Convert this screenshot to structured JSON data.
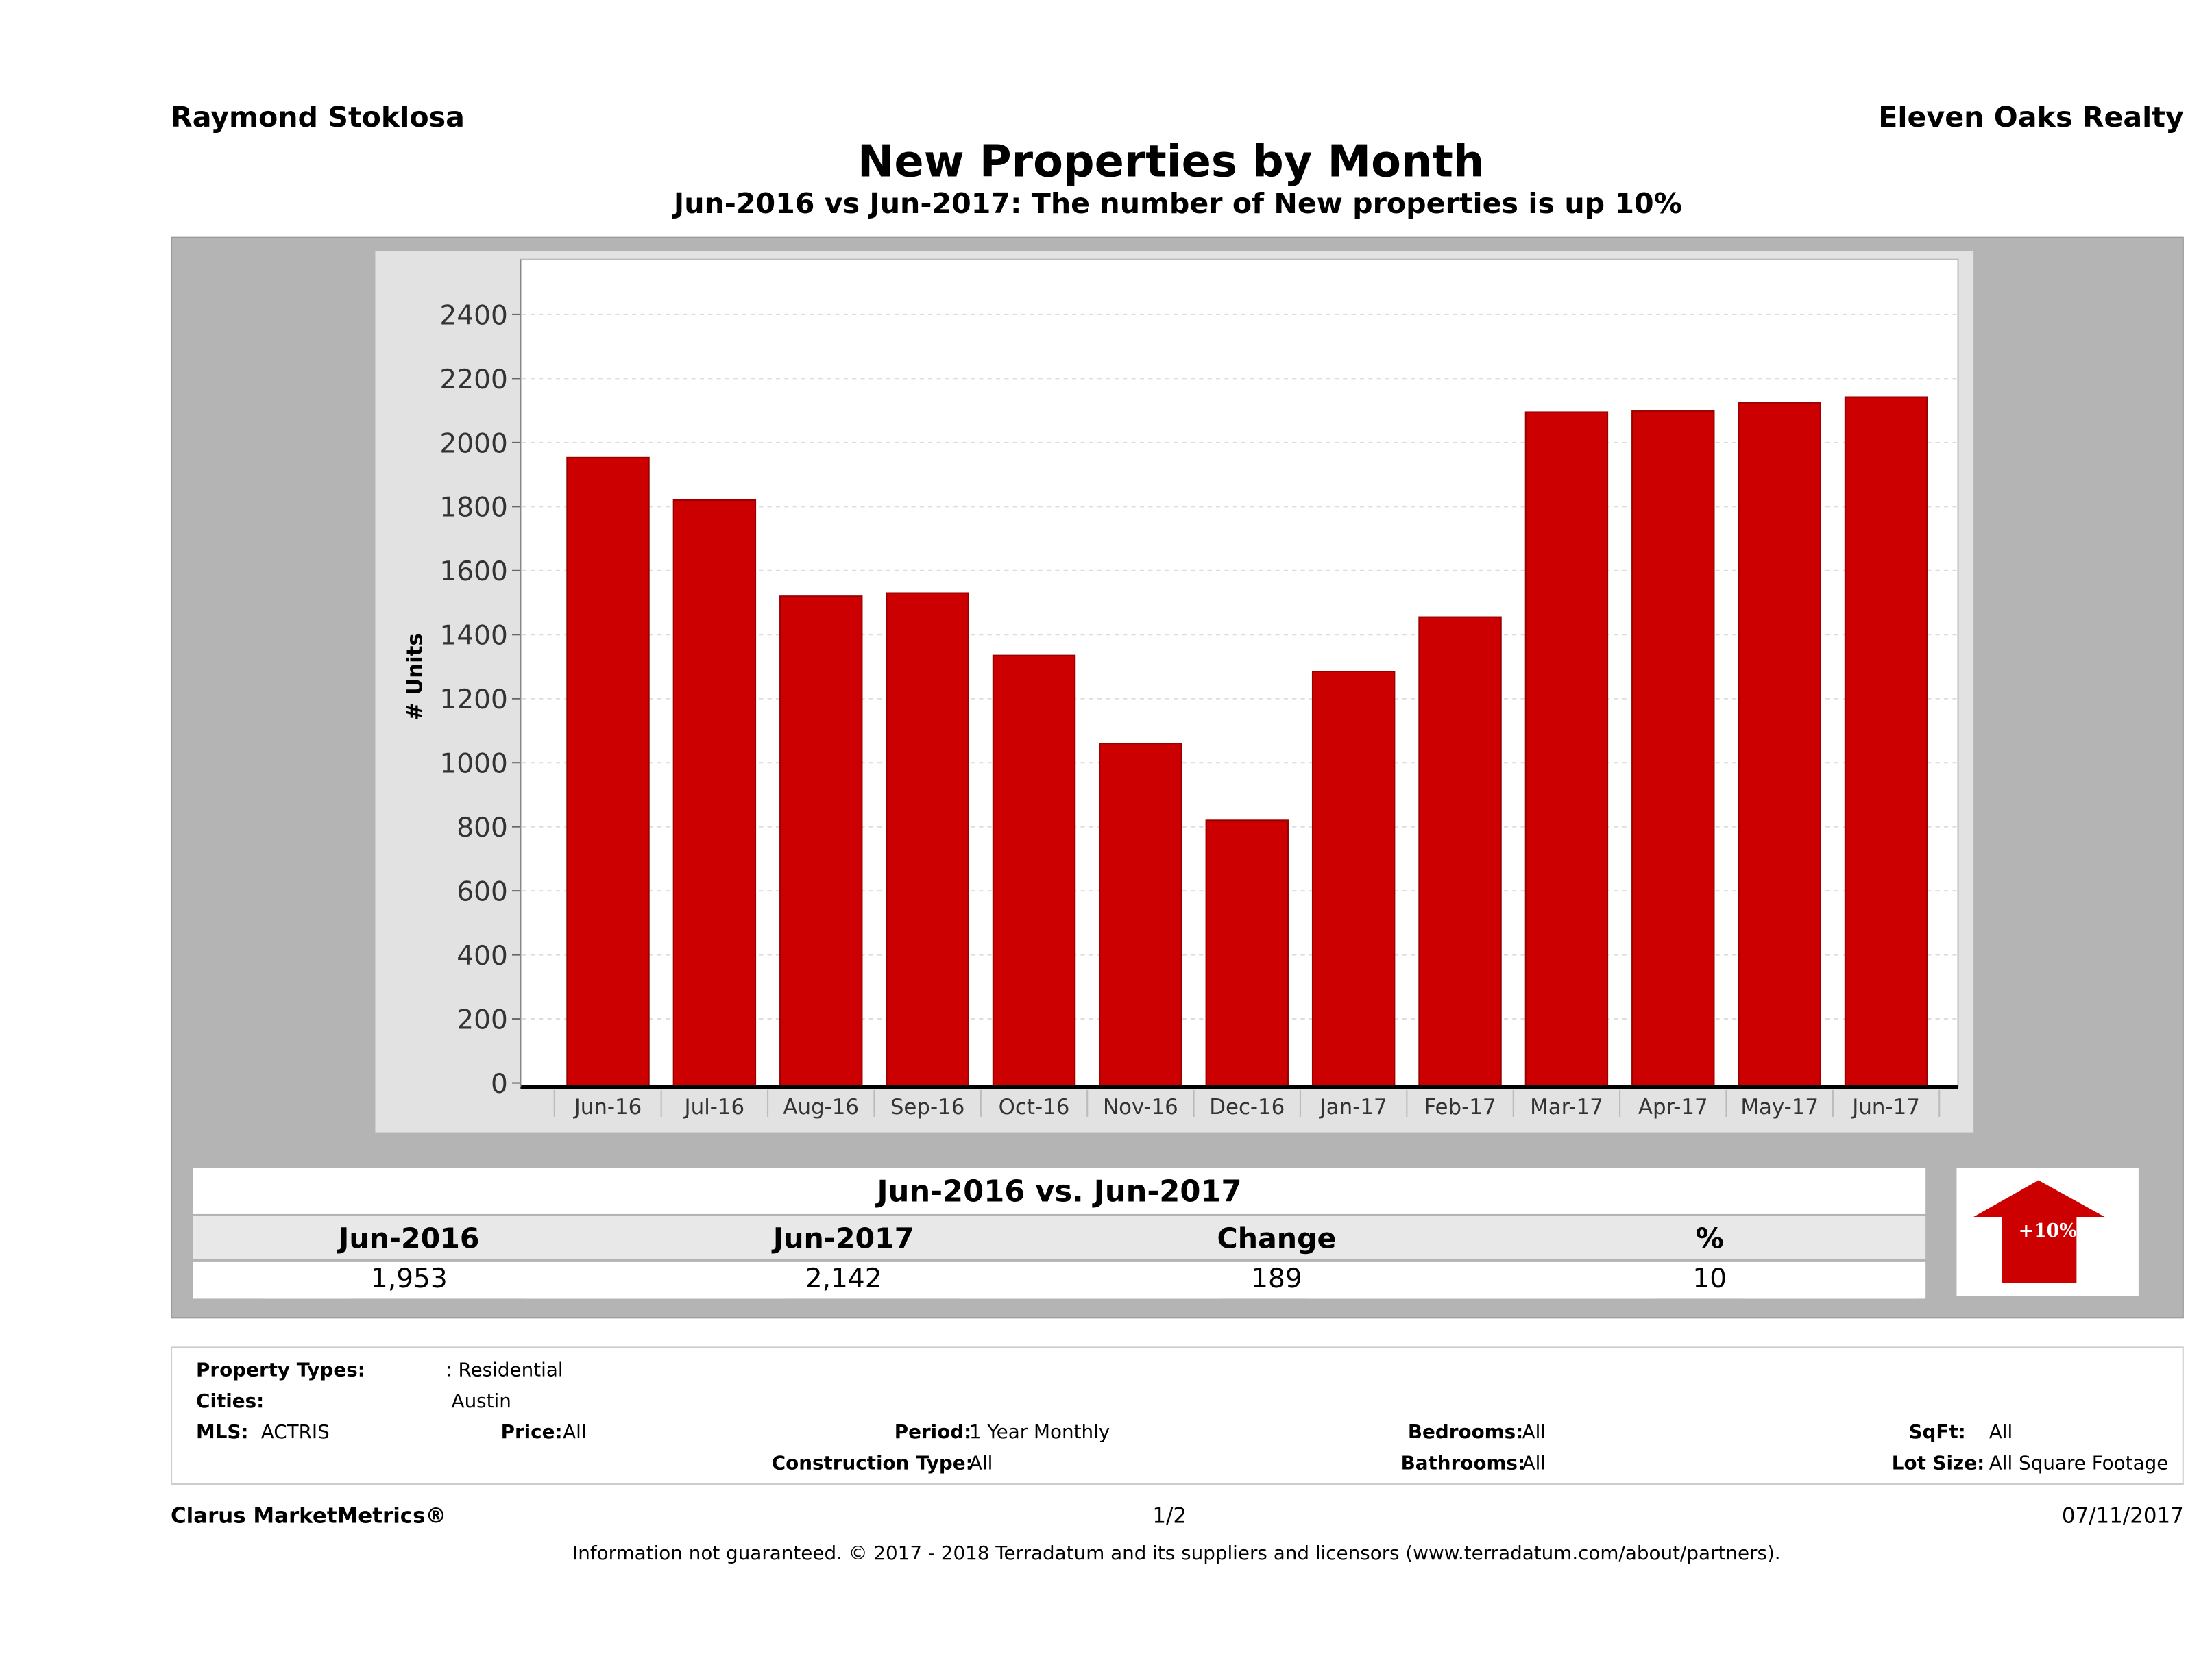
{
  "header": {
    "left": "Raymond Stoklosa",
    "right": "Eleven Oaks Realty"
  },
  "title": "New Properties by Month",
  "subtitle": "Jun-2016 vs Jun-2017: The number of New  properties is up 10%",
  "colors": {
    "bar": "#cc0000",
    "panel": "#b4b4b4",
    "arrow": "#cc0000"
  },
  "chart_data": {
    "type": "bar",
    "title": "New Properties by Month",
    "ylabel": "# Units",
    "xlabel": "",
    "ylim": [
      0,
      2400
    ],
    "yticks": [
      0,
      200,
      400,
      600,
      800,
      1000,
      1200,
      1400,
      1600,
      1800,
      2000,
      2200,
      2400
    ],
    "grid": true,
    "categories": [
      "Jun-16",
      "Jul-16",
      "Aug-16",
      "Sep-16",
      "Oct-16",
      "Nov-16",
      "Dec-16",
      "Jan-17",
      "Feb-17",
      "Mar-17",
      "Apr-17",
      "May-17",
      "Jun-17"
    ],
    "values": [
      1953,
      1820,
      1520,
      1530,
      1335,
      1060,
      820,
      1285,
      1455,
      2095,
      2098,
      2125,
      2142
    ]
  },
  "summary": {
    "title": "Jun-2016 vs. Jun-2017",
    "headers": [
      "Jun-2016",
      "Jun-2017",
      "Change",
      "%"
    ],
    "values": [
      "1,953",
      "2,142",
      "189",
      "10"
    ],
    "arrow_label": "+10%",
    "arrow_icon": "up-arrow-icon"
  },
  "criteria": {
    "property_types_label": "Property Types:",
    "property_types": ": Residential",
    "cities_label": "Cities:",
    "cities": "Austin",
    "mls_label": "MLS:",
    "mls": "ACTRIS",
    "price_label": "Price:",
    "price": "All",
    "period_label": "Period:",
    "period": "1 Year Monthly",
    "bedrooms_label": "Bedrooms:",
    "bedrooms": "All",
    "sqft_label": "SqFt:",
    "sqft": "All",
    "construction_label": "Construction Type:",
    "construction": "All",
    "bathrooms_label": "Bathrooms:",
    "bathrooms": "All",
    "lotsize_label": "Lot Size:",
    "lotsize": "All Square Footage"
  },
  "footer": {
    "brand": "Clarus MarketMetrics®",
    "page": "1/2",
    "date": "07/11/2017",
    "disclaimer": "Information not guaranteed. © 2017 - 2018 Terradatum and its suppliers and licensors (www.terradatum.com/about/partners)."
  }
}
